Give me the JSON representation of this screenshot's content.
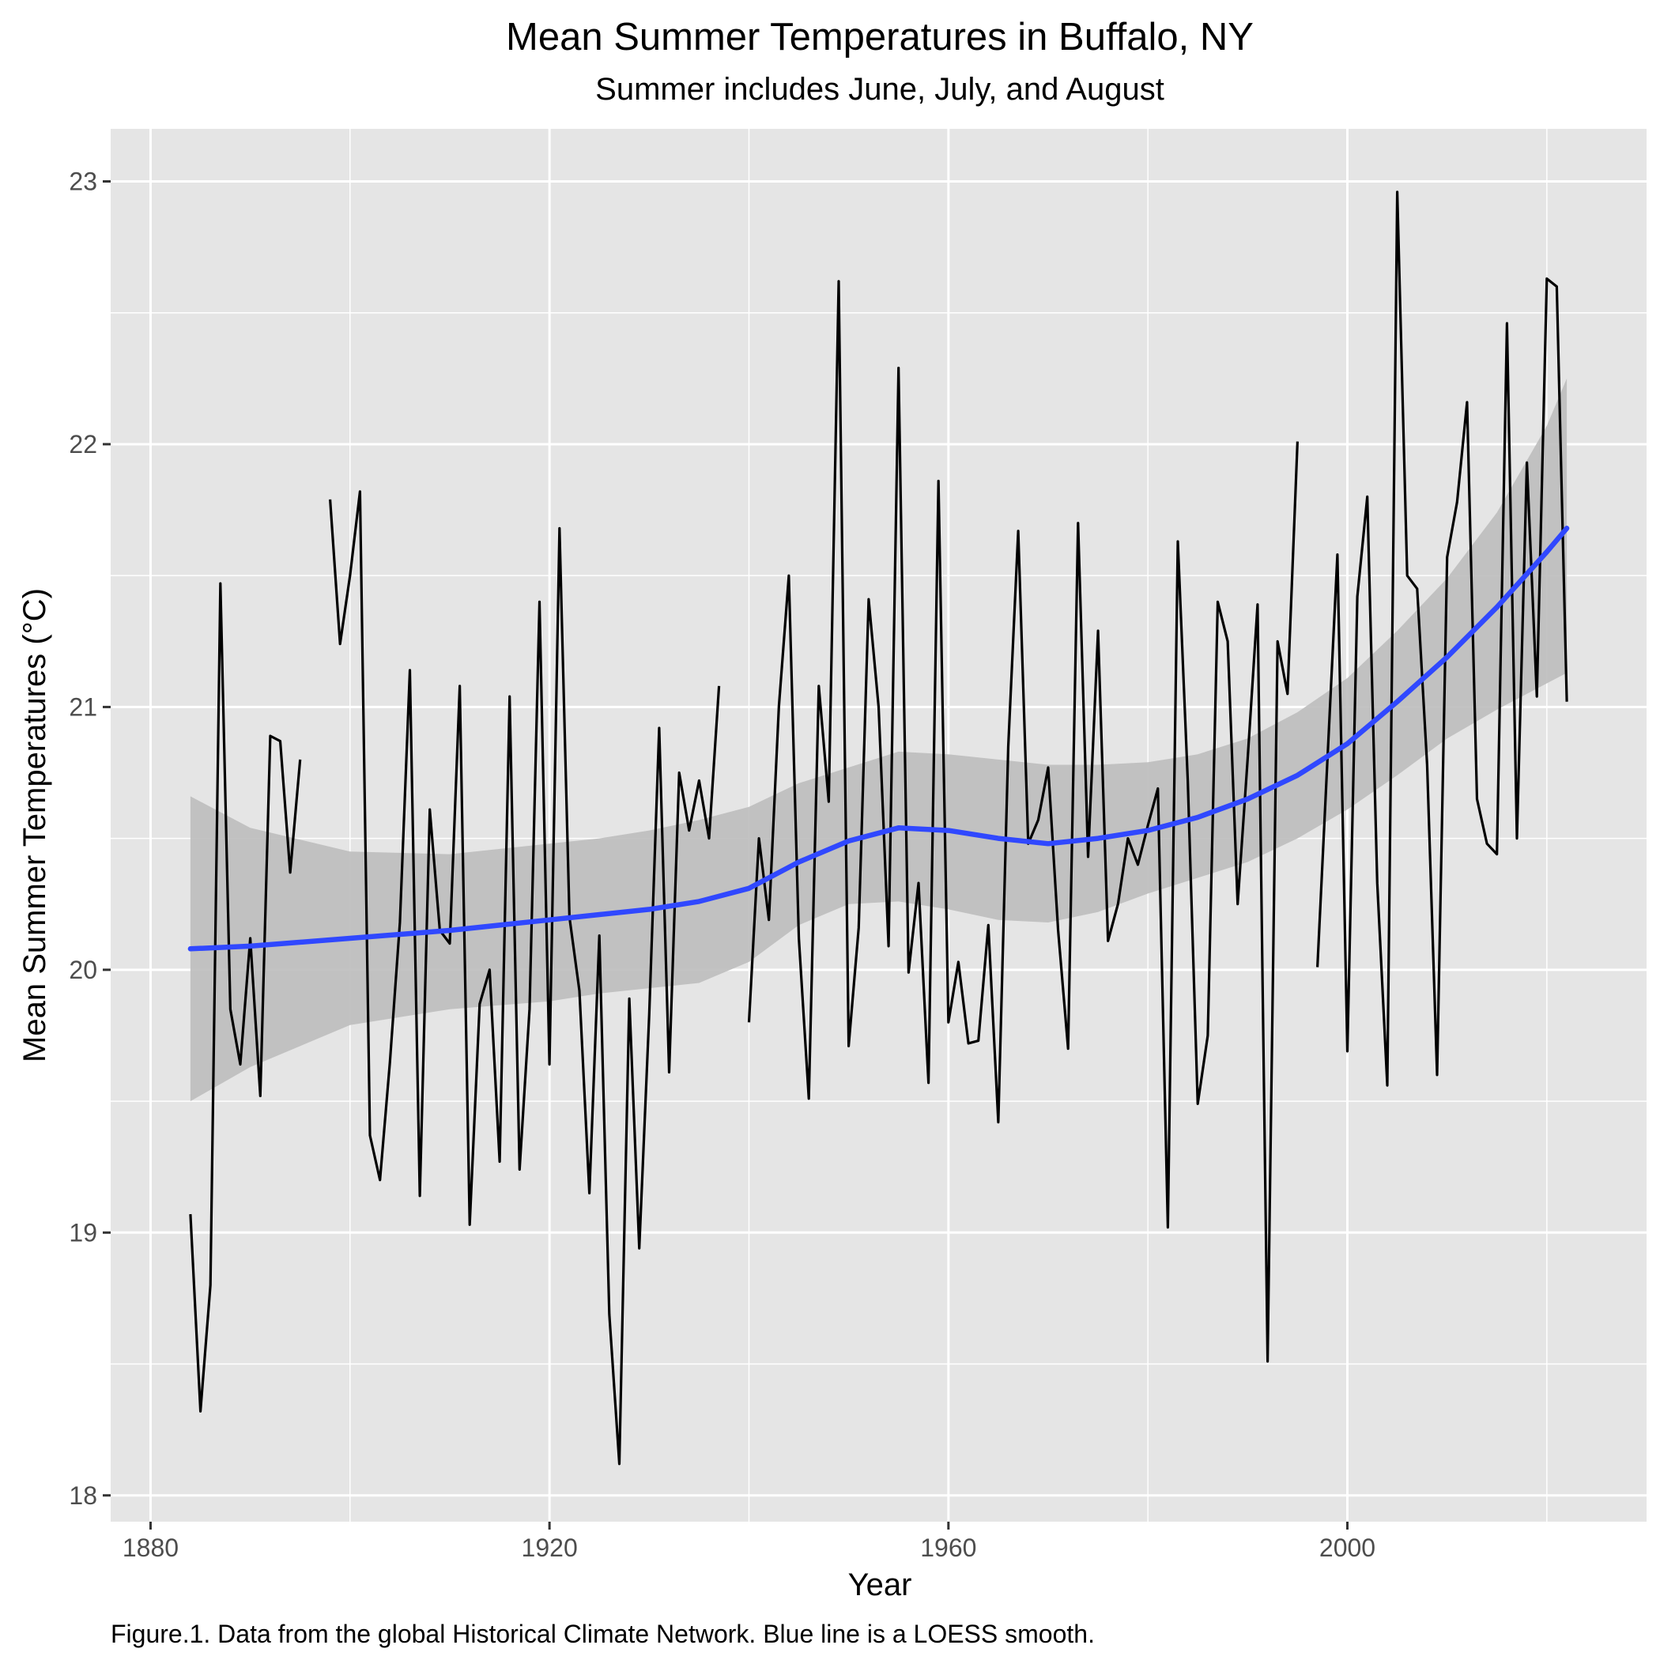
{
  "chart_data": {
    "type": "line",
    "title": "Mean Summer Temperatures in Buffalo, NY",
    "subtitle": "Summer includes June, July, and August",
    "xlabel": "Year",
    "ylabel": "Mean Summer Temperatures (°C)",
    "caption": "Figure.1. Data from the global Historical Climate Network. Blue line is a LOESS smooth.",
    "xlim": [
      1876,
      2030
    ],
    "ylim": [
      17.9,
      23.2
    ],
    "x_ticks": [
      1880,
      1920,
      1960,
      2000
    ],
    "x_tick_labels": [
      "1880",
      "1920",
      "1960",
      "2000"
    ],
    "x_minor_ticks": [
      1900,
      1940,
      1980,
      2020
    ],
    "y_ticks": [
      18,
      19,
      20,
      21,
      22,
      23
    ],
    "y_tick_labels": [
      "18",
      "19",
      "20",
      "21",
      "22",
      "23"
    ],
    "y_minor_ticks": [
      18.5,
      19.5,
      20.5,
      21.5,
      22.5
    ],
    "grid": true,
    "legend": "none",
    "colors": {
      "panel": "#e5e5e5",
      "grid": "#ffffff",
      "observed": "#000000",
      "smooth": "#3048ff",
      "band": "#bdbdbd"
    },
    "series": [
      {
        "kind": "observed",
        "color": "#000000",
        "points": [
          [
            1884,
            19.07
          ],
          [
            1885,
            18.32
          ],
          [
            1886,
            18.8
          ],
          [
            1887,
            21.47
          ],
          [
            1888,
            19.85
          ],
          [
            1889,
            19.64
          ],
          [
            1890,
            20.12
          ],
          [
            1891,
            19.52
          ],
          [
            1892,
            20.89
          ],
          [
            1893,
            20.87
          ],
          [
            1894,
            20.37
          ],
          [
            1895,
            20.8
          ],
          [
            1898,
            21.79
          ],
          [
            1899,
            21.24
          ],
          [
            1900,
            21.5
          ],
          [
            1901,
            21.82
          ],
          [
            1902,
            19.37
          ],
          [
            1903,
            19.2
          ],
          [
            1904,
            19.65
          ],
          [
            1905,
            20.18
          ],
          [
            1906,
            21.14
          ],
          [
            1907,
            19.14
          ],
          [
            1908,
            20.61
          ],
          [
            1909,
            20.15
          ],
          [
            1910,
            20.1
          ],
          [
            1911,
            21.08
          ],
          [
            1912,
            19.03
          ],
          [
            1913,
            19.87
          ],
          [
            1914,
            20.0
          ],
          [
            1915,
            19.27
          ],
          [
            1916,
            21.04
          ],
          [
            1917,
            19.24
          ],
          [
            1918,
            19.85
          ],
          [
            1919,
            21.4
          ],
          [
            1920,
            19.64
          ],
          [
            1921,
            21.68
          ],
          [
            1922,
            20.2
          ],
          [
            1923,
            19.92
          ],
          [
            1924,
            19.15
          ],
          [
            1925,
            20.13
          ],
          [
            1926,
            18.69
          ],
          [
            1927,
            18.12
          ],
          [
            1928,
            19.89
          ],
          [
            1929,
            18.94
          ],
          [
            1930,
            19.83
          ],
          [
            1931,
            20.92
          ],
          [
            1932,
            19.61
          ],
          [
            1933,
            20.75
          ],
          [
            1934,
            20.53
          ],
          [
            1935,
            20.72
          ],
          [
            1936,
            20.5
          ],
          [
            1937,
            21.08
          ],
          [
            1940,
            19.8
          ],
          [
            1941,
            20.5
          ],
          [
            1942,
            20.19
          ],
          [
            1943,
            21.0
          ],
          [
            1944,
            21.5
          ],
          [
            1945,
            20.12
          ],
          [
            1946,
            19.51
          ],
          [
            1947,
            21.08
          ],
          [
            1948,
            20.64
          ],
          [
            1949,
            22.62
          ],
          [
            1950,
            19.71
          ],
          [
            1951,
            20.16
          ],
          [
            1952,
            21.41
          ],
          [
            1953,
            21.0
          ],
          [
            1954,
            20.09
          ],
          [
            1955,
            22.29
          ],
          [
            1956,
            19.99
          ],
          [
            1957,
            20.33
          ],
          [
            1958,
            19.57
          ],
          [
            1959,
            21.86
          ],
          [
            1960,
            19.8
          ],
          [
            1961,
            20.03
          ],
          [
            1962,
            19.72
          ],
          [
            1963,
            19.73
          ],
          [
            1964,
            20.17
          ],
          [
            1965,
            19.42
          ],
          [
            1966,
            20.85
          ],
          [
            1967,
            21.67
          ],
          [
            1968,
            20.48
          ],
          [
            1969,
            20.57
          ],
          [
            1970,
            20.77
          ],
          [
            1971,
            20.15
          ],
          [
            1972,
            19.7
          ],
          [
            1973,
            21.7
          ],
          [
            1974,
            20.43
          ],
          [
            1975,
            21.29
          ],
          [
            1976,
            20.11
          ],
          [
            1977,
            20.25
          ],
          [
            1978,
            20.5
          ],
          [
            1979,
            20.4
          ],
          [
            1980,
            20.55
          ],
          [
            1981,
            20.69
          ],
          [
            1982,
            19.02
          ],
          [
            1983,
            21.63
          ],
          [
            1984,
            20.72
          ],
          [
            1985,
            19.49
          ],
          [
            1986,
            19.75
          ],
          [
            1987,
            21.4
          ],
          [
            1988,
            21.25
          ],
          [
            1989,
            20.25
          ],
          [
            1990,
            20.8
          ],
          [
            1991,
            21.39
          ],
          [
            1992,
            18.51
          ],
          [
            1993,
            21.25
          ],
          [
            1994,
            21.05
          ],
          [
            1995,
            22.01
          ],
          [
            1997,
            20.01
          ],
          [
            1998,
            20.8
          ],
          [
            1999,
            21.58
          ],
          [
            2000,
            19.69
          ],
          [
            2001,
            21.42
          ],
          [
            2002,
            21.8
          ],
          [
            2003,
            20.33
          ],
          [
            2004,
            19.56
          ],
          [
            2005,
            22.96
          ],
          [
            2006,
            21.5
          ],
          [
            2007,
            21.45
          ],
          [
            2008,
            20.78
          ],
          [
            2009,
            19.6
          ],
          [
            2010,
            21.57
          ],
          [
            2011,
            21.78
          ],
          [
            2012,
            22.16
          ],
          [
            2013,
            20.65
          ],
          [
            2014,
            20.48
          ],
          [
            2015,
            20.44
          ],
          [
            2016,
            22.46
          ],
          [
            2017,
            20.5
          ],
          [
            2018,
            21.93
          ],
          [
            2019,
            21.04
          ],
          [
            2020,
            22.63
          ],
          [
            2021,
            22.6
          ],
          [
            2022,
            21.02
          ]
        ]
      },
      {
        "kind": "smooth",
        "color": "#3048ff",
        "points": [
          [
            1884,
            20.08
          ],
          [
            1890,
            20.09
          ],
          [
            1900,
            20.12
          ],
          [
            1910,
            20.15
          ],
          [
            1920,
            20.19
          ],
          [
            1925,
            20.21
          ],
          [
            1930,
            20.23
          ],
          [
            1935,
            20.26
          ],
          [
            1940,
            20.31
          ],
          [
            1945,
            20.41
          ],
          [
            1950,
            20.49
          ],
          [
            1955,
            20.54
          ],
          [
            1960,
            20.53
          ],
          [
            1965,
            20.5
          ],
          [
            1970,
            20.48
          ],
          [
            1975,
            20.5
          ],
          [
            1980,
            20.53
          ],
          [
            1985,
            20.58
          ],
          [
            1990,
            20.65
          ],
          [
            1995,
            20.74
          ],
          [
            2000,
            20.86
          ],
          [
            2005,
            21.02
          ],
          [
            2010,
            21.19
          ],
          [
            2015,
            21.38
          ],
          [
            2020,
            21.59
          ],
          [
            2022,
            21.68
          ]
        ],
        "lower": [
          19.5,
          19.63,
          19.79,
          19.85,
          19.88,
          19.91,
          19.93,
          19.95,
          20.03,
          20.17,
          20.25,
          20.26,
          20.23,
          20.19,
          20.18,
          20.22,
          20.29,
          20.35,
          20.41,
          20.5,
          20.61,
          20.74,
          20.88,
          20.99,
          21.09,
          21.13
        ],
        "upper": [
          20.66,
          20.54,
          20.45,
          20.44,
          20.48,
          20.5,
          20.53,
          20.57,
          20.62,
          20.71,
          20.77,
          20.83,
          20.82,
          20.8,
          20.78,
          20.78,
          20.79,
          20.82,
          20.88,
          20.98,
          21.11,
          21.29,
          21.49,
          21.74,
          22.07,
          22.25
        ]
      }
    ]
  }
}
